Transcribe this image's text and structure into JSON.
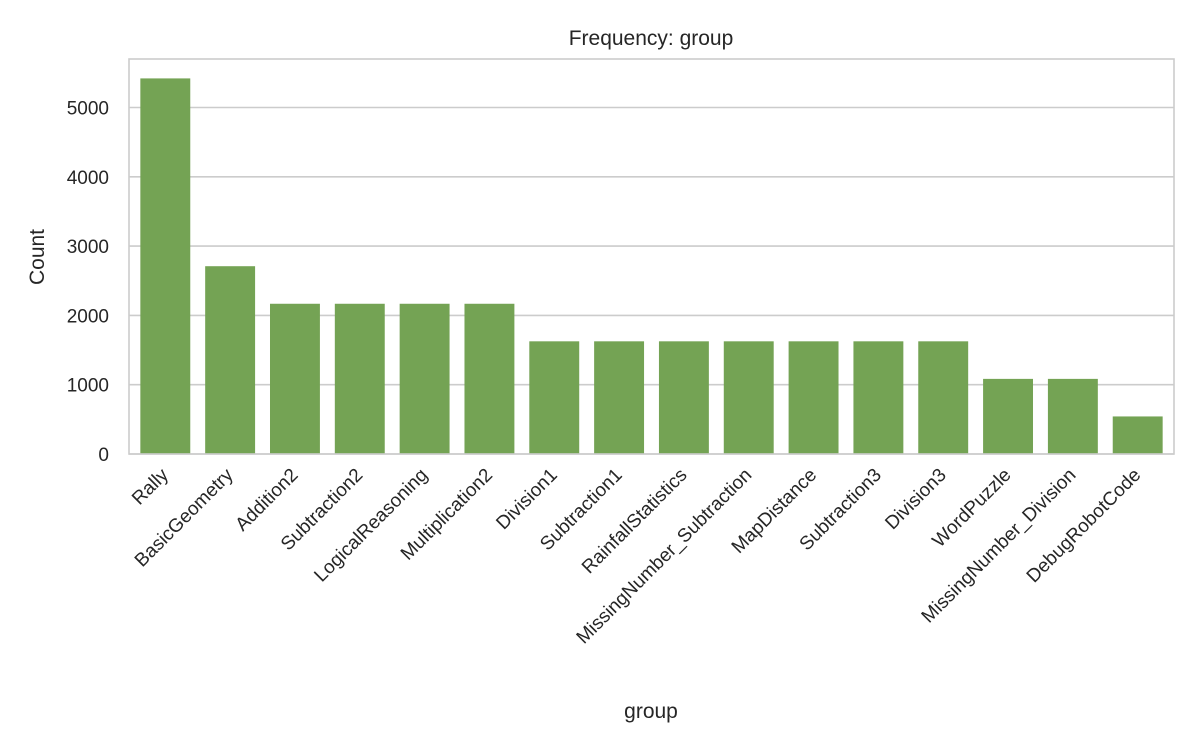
{
  "chart_data": {
    "type": "bar",
    "title": "Frequency: group",
    "xlabel": "group",
    "ylabel": "Count",
    "categories": [
      "Rally",
      "BasicGeometry",
      "Addition2",
      "Subtraction2",
      "LogicalReasoning",
      "Multiplication2",
      "Division1",
      "Subtraction1",
      "RainfallStatistics",
      "MissingNumber_Subtraction",
      "MapDistance",
      "Subtraction3",
      "Division3",
      "WordPuzzle",
      "MissingNumber_Division",
      "DebugRobotCode"
    ],
    "values": [
      5420,
      2710,
      2168,
      2168,
      2168,
      2168,
      1626,
      1626,
      1626,
      1626,
      1626,
      1626,
      1626,
      1084,
      1084,
      542
    ],
    "ylim": [
      0,
      5700
    ],
    "yticks": [
      0,
      1000,
      2000,
      3000,
      4000,
      5000
    ],
    "grid": "y",
    "bar_color": "#74a354",
    "grid_color": "#cccccc"
  }
}
